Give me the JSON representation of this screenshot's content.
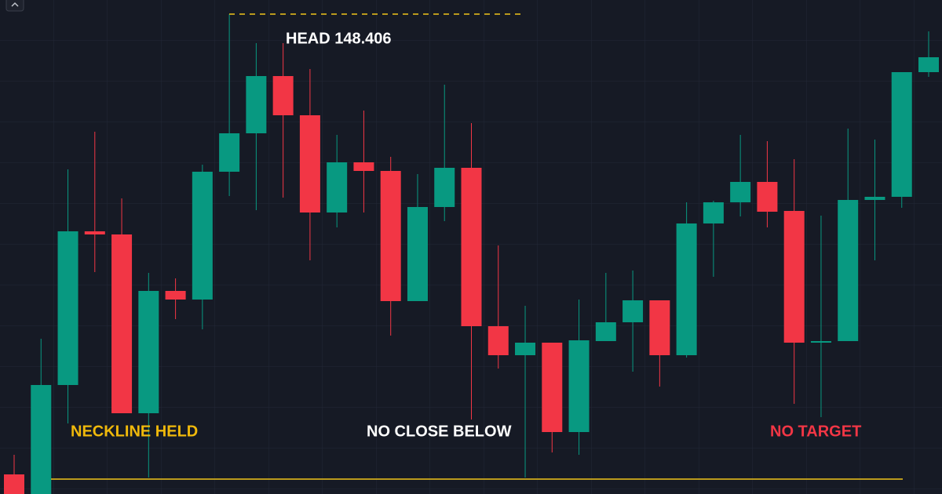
{
  "chart_data": {
    "type": "candlestick",
    "up_color": "#089981",
    "down_color": "#f23645",
    "ylim": [
      142.286,
      148.586
    ],
    "open": [
      142.536,
      142.286,
      143.676,
      145.636,
      145.596,
      143.316,
      144.876,
      144.766,
      146.396,
      146.886,
      147.616,
      147.116,
      145.876,
      146.516,
      146.406,
      144.746,
      145.946,
      146.446,
      144.426,
      144.056,
      144.216,
      143.076,
      144.236,
      144.476,
      144.756,
      144.056,
      145.736,
      146.006,
      146.266,
      145.896,
      144.216,
      144.236,
      146.036,
      146.076,
      147.666
    ],
    "high": [
      142.786,
      144.266,
      146.426,
      146.906,
      146.056,
      145.106,
      145.036,
      146.486,
      148.406,
      148.036,
      148.036,
      147.706,
      146.866,
      147.176,
      146.586,
      146.366,
      147.506,
      147.016,
      145.456,
      144.686,
      144.216,
      144.766,
      145.106,
      145.136,
      144.756,
      146.006,
      146.026,
      146.866,
      146.786,
      146.556,
      145.836,
      146.946,
      146.806,
      147.666,
      148.186
    ],
    "low": [
      142.286,
      142.286,
      143.186,
      145.116,
      143.316,
      142.496,
      144.516,
      144.386,
      146.086,
      145.906,
      146.066,
      145.266,
      145.686,
      145.876,
      144.306,
      144.746,
      145.766,
      143.236,
      143.886,
      142.496,
      142.816,
      142.786,
      144.236,
      143.846,
      143.656,
      144.026,
      145.056,
      145.826,
      145.686,
      143.436,
      143.266,
      144.236,
      145.266,
      145.936,
      147.606
    ],
    "close": [
      142.286,
      143.676,
      145.636,
      145.596,
      143.316,
      144.876,
      144.766,
      146.396,
      146.886,
      147.616,
      147.116,
      145.876,
      146.516,
      146.406,
      144.746,
      145.946,
      146.446,
      144.426,
      144.056,
      144.216,
      143.076,
      144.246,
      144.476,
      144.756,
      144.056,
      145.736,
      146.006,
      146.266,
      145.886,
      144.216,
      144.236,
      146.036,
      146.076,
      147.666,
      147.856
    ],
    "neckline": 142.476,
    "neckline_color": "#f0c419",
    "head_line_color": "#f0c419",
    "annotations": [
      {
        "text": "HEAD 148.406",
        "color": "#ffffff"
      },
      {
        "text": "NECKLINE HELD",
        "color": "#f0b90b"
      },
      {
        "text": "NO CLOSE BELOW",
        "color": "#ffffff"
      },
      {
        "text": "NO TARGET",
        "color": "#f23645"
      }
    ]
  }
}
